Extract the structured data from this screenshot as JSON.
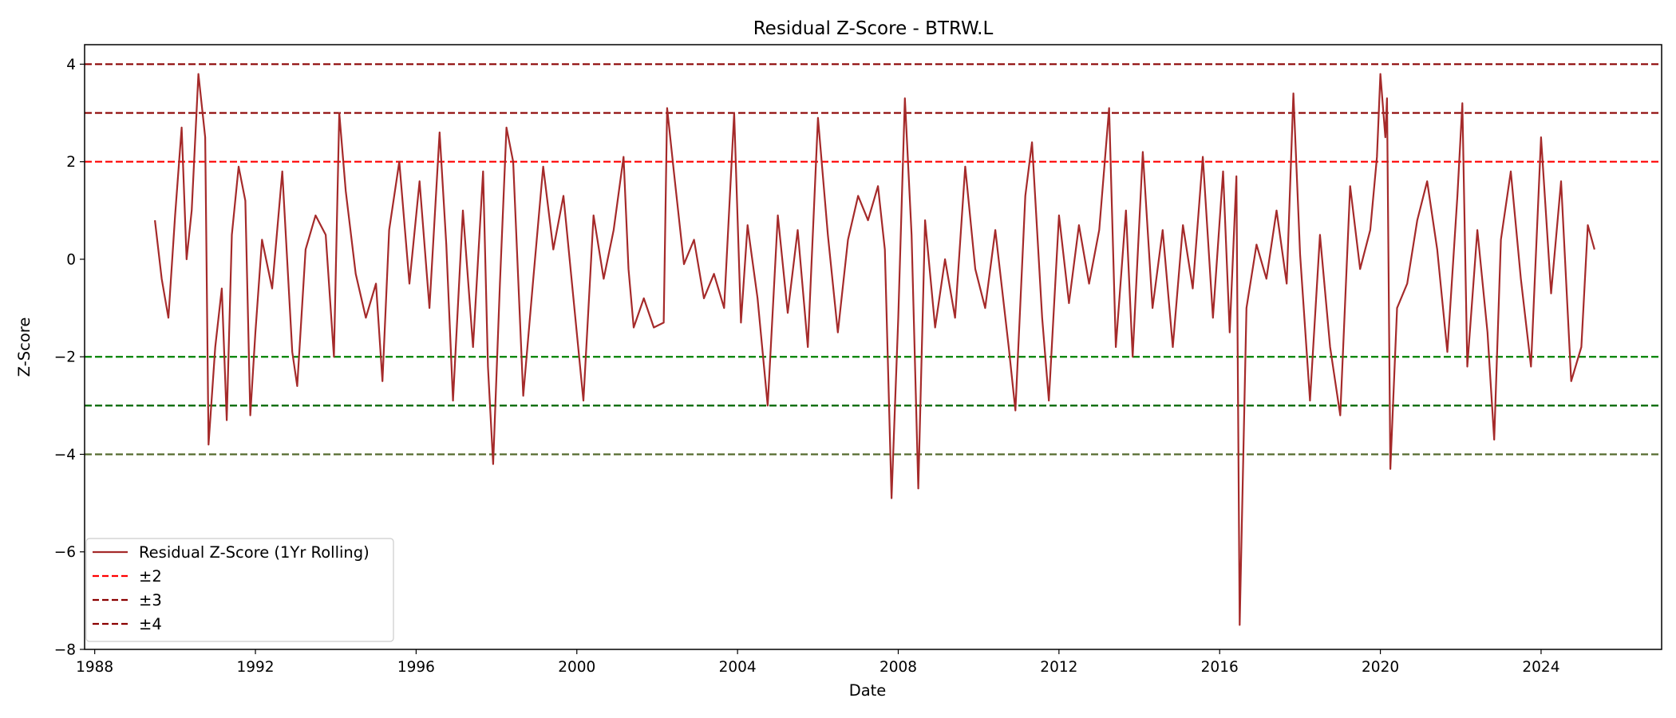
{
  "chart_data": {
    "type": "line",
    "title": "Residual Z-Score - BTRW.L",
    "xlabel": "Date",
    "ylabel": "Z-Score",
    "xlim": [
      "1987-10-01",
      "2027-01-01"
    ],
    "ylim": [
      -8.0,
      4.4
    ],
    "x_ticks": [
      "1988",
      "1992",
      "1996",
      "2000",
      "2004",
      "2008",
      "2012",
      "2016",
      "2020",
      "2024"
    ],
    "y_ticks": [
      -8,
      -6,
      -4,
      -2,
      0,
      2,
      4
    ],
    "y_tick_labels": [
      "−8",
      "−6",
      "−4",
      "−2",
      "0",
      "2",
      "4"
    ],
    "grid": false,
    "legend_position": "lower-left",
    "series": [
      {
        "name": "Residual Z-Score (1Yr Rolling)",
        "color": "#a52a2a",
        "style": "solid",
        "points": [
          [
            "1989-07-01",
            0.8
          ],
          [
            "1989-09-01",
            -0.4
          ],
          [
            "1989-11-01",
            -1.2
          ],
          [
            "1990-01-01",
            0.9
          ],
          [
            "1990-03-01",
            2.7
          ],
          [
            "1990-04-15",
            0.0
          ],
          [
            "1990-06-01",
            1.0
          ],
          [
            "1990-08-01",
            3.8
          ],
          [
            "1990-10-01",
            2.5
          ],
          [
            "1990-11-01",
            -3.8
          ],
          [
            "1991-01-01",
            -1.8
          ],
          [
            "1991-03-01",
            -0.6
          ],
          [
            "1991-04-15",
            -3.3
          ],
          [
            "1991-06-01",
            0.5
          ],
          [
            "1991-08-01",
            1.9
          ],
          [
            "1991-10-01",
            1.2
          ],
          [
            "1991-11-15",
            -3.2
          ],
          [
            "1992-01-01",
            -1.5
          ],
          [
            "1992-03-01",
            0.4
          ],
          [
            "1992-06-01",
            -0.6
          ],
          [
            "1992-09-01",
            1.8
          ],
          [
            "1992-12-01",
            -1.9
          ],
          [
            "1993-01-15",
            -2.6
          ],
          [
            "1993-04-01",
            0.2
          ],
          [
            "1993-07-01",
            0.9
          ],
          [
            "1993-10-01",
            0.5
          ],
          [
            "1993-12-15",
            -2.0
          ],
          [
            "1994-02-01",
            3.0
          ],
          [
            "1994-04-01",
            1.4
          ],
          [
            "1994-07-01",
            -0.3
          ],
          [
            "1994-10-01",
            -1.2
          ],
          [
            "1995-01-01",
            -0.5
          ],
          [
            "1995-03-01",
            -2.5
          ],
          [
            "1995-05-01",
            0.6
          ],
          [
            "1995-08-01",
            2.0
          ],
          [
            "1995-11-01",
            -0.5
          ],
          [
            "1996-02-01",
            1.6
          ],
          [
            "1996-05-01",
            -1.0
          ],
          [
            "1996-08-01",
            2.6
          ],
          [
            "1996-10-01",
            0.3
          ],
          [
            "1996-12-01",
            -2.9
          ],
          [
            "1997-03-01",
            1.0
          ],
          [
            "1997-06-01",
            -1.8
          ],
          [
            "1997-09-01",
            1.8
          ],
          [
            "1997-10-15",
            -2.2
          ],
          [
            "1997-12-01",
            -4.2
          ],
          [
            "1998-02-01",
            -0.5
          ],
          [
            "1998-04-01",
            2.7
          ],
          [
            "1998-06-01",
            2.0
          ],
          [
            "1998-09-01",
            -2.8
          ],
          [
            "1998-12-01",
            -0.4
          ],
          [
            "1999-03-01",
            1.9
          ],
          [
            "1999-06-01",
            0.2
          ],
          [
            "1999-09-01",
            1.3
          ],
          [
            "1999-12-01",
            -0.8
          ],
          [
            "2000-03-01",
            -2.9
          ],
          [
            "2000-06-01",
            0.9
          ],
          [
            "2000-09-01",
            -0.4
          ],
          [
            "2000-12-01",
            0.6
          ],
          [
            "2001-03-01",
            2.1
          ],
          [
            "2001-04-15",
            -0.2
          ],
          [
            "2001-06-01",
            -1.4
          ],
          [
            "2001-09-01",
            -0.8
          ],
          [
            "2001-12-01",
            -1.4
          ],
          [
            "2002-03-01",
            -1.3
          ],
          [
            "2002-04-01",
            3.1
          ],
          [
            "2002-06-01",
            1.8
          ],
          [
            "2002-09-01",
            -0.1
          ],
          [
            "2002-12-01",
            0.4
          ],
          [
            "2003-03-01",
            -0.8
          ],
          [
            "2003-06-01",
            -0.3
          ],
          [
            "2003-09-01",
            -1.0
          ],
          [
            "2003-12-01",
            3.0
          ],
          [
            "2004-02-01",
            -1.3
          ],
          [
            "2004-04-01",
            0.7
          ],
          [
            "2004-07-01",
            -0.8
          ],
          [
            "2004-10-01",
            -3.0
          ],
          [
            "2005-01-01",
            0.9
          ],
          [
            "2005-04-01",
            -1.1
          ],
          [
            "2005-07-01",
            0.6
          ],
          [
            "2005-10-01",
            -1.8
          ],
          [
            "2006-01-01",
            2.9
          ],
          [
            "2006-04-01",
            0.5
          ],
          [
            "2006-07-01",
            -1.5
          ],
          [
            "2006-10-01",
            0.4
          ],
          [
            "2007-01-01",
            1.3
          ],
          [
            "2007-04-01",
            0.8
          ],
          [
            "2007-07-01",
            1.5
          ],
          [
            "2007-09-01",
            0.2
          ],
          [
            "2007-11-01",
            -4.9
          ],
          [
            "2008-01-01",
            -1.2
          ],
          [
            "2008-03-01",
            3.3
          ],
          [
            "2008-05-01",
            0.5
          ],
          [
            "2008-07-01",
            -4.7
          ],
          [
            "2008-09-01",
            0.8
          ],
          [
            "2008-12-01",
            -1.4
          ],
          [
            "2009-03-01",
            0.0
          ],
          [
            "2009-06-01",
            -1.2
          ],
          [
            "2009-09-01",
            1.9
          ],
          [
            "2009-12-01",
            -0.2
          ],
          [
            "2010-03-01",
            -1.0
          ],
          [
            "2010-06-01",
            0.6
          ],
          [
            "2010-10-01",
            -1.8
          ],
          [
            "2010-12-01",
            -3.1
          ],
          [
            "2011-03-01",
            1.3
          ],
          [
            "2011-05-01",
            2.4
          ],
          [
            "2011-08-01",
            -1.2
          ],
          [
            "2011-10-01",
            -2.9
          ],
          [
            "2012-01-01",
            0.9
          ],
          [
            "2012-04-01",
            -0.9
          ],
          [
            "2012-07-01",
            0.7
          ],
          [
            "2012-10-01",
            -0.5
          ],
          [
            "2013-01-01",
            0.6
          ],
          [
            "2013-04-01",
            3.1
          ],
          [
            "2013-06-01",
            -1.8
          ],
          [
            "2013-09-01",
            1.0
          ],
          [
            "2013-11-01",
            -2.0
          ],
          [
            "2014-02-01",
            2.2
          ],
          [
            "2014-05-01",
            -1.0
          ],
          [
            "2014-08-01",
            0.6
          ],
          [
            "2014-11-01",
            -1.8
          ],
          [
            "2015-02-01",
            0.7
          ],
          [
            "2015-05-01",
            -0.6
          ],
          [
            "2015-08-01",
            2.1
          ],
          [
            "2015-11-01",
            -1.2
          ],
          [
            "2016-02-01",
            1.8
          ],
          [
            "2016-04-01",
            -1.5
          ],
          [
            "2016-06-01",
            1.7
          ],
          [
            "2016-07-01",
            -7.5
          ],
          [
            "2016-09-01",
            -1.0
          ],
          [
            "2016-12-01",
            0.3
          ],
          [
            "2017-03-01",
            -0.4
          ],
          [
            "2017-06-01",
            1.0
          ],
          [
            "2017-09-01",
            -0.5
          ],
          [
            "2017-11-01",
            3.4
          ],
          [
            "2018-01-01",
            0.1
          ],
          [
            "2018-04-01",
            -2.9
          ],
          [
            "2018-07-01",
            0.5
          ],
          [
            "2018-10-01",
            -1.8
          ],
          [
            "2019-01-01",
            -3.2
          ],
          [
            "2019-04-01",
            1.5
          ],
          [
            "2019-07-01",
            -0.2
          ],
          [
            "2019-10-01",
            0.6
          ],
          [
            "2019-12-01",
            2.1
          ],
          [
            "2020-01-01",
            3.8
          ],
          [
            "2020-02-15",
            2.5
          ],
          [
            "2020-03-01",
            3.3
          ],
          [
            "2020-04-01",
            -4.3
          ],
          [
            "2020-06-01",
            -1.0
          ],
          [
            "2020-09-01",
            -0.5
          ],
          [
            "2020-12-01",
            0.8
          ],
          [
            "2021-03-01",
            1.6
          ],
          [
            "2021-06-01",
            0.2
          ],
          [
            "2021-09-01",
            -1.9
          ],
          [
            "2021-12-01",
            1.3
          ],
          [
            "2022-01-15",
            3.2
          ],
          [
            "2022-03-01",
            -2.2
          ],
          [
            "2022-06-01",
            0.6
          ],
          [
            "2022-09-01",
            -1.5
          ],
          [
            "2022-11-01",
            -3.7
          ],
          [
            "2023-01-01",
            0.4
          ],
          [
            "2023-04-01",
            1.8
          ],
          [
            "2023-07-01",
            -0.4
          ],
          [
            "2023-10-01",
            -2.2
          ],
          [
            "2024-01-01",
            2.5
          ],
          [
            "2024-04-01",
            -0.7
          ],
          [
            "2024-07-01",
            1.6
          ],
          [
            "2024-10-01",
            -2.5
          ],
          [
            "2025-01-01",
            -1.8
          ],
          [
            "2025-03-01",
            0.7
          ],
          [
            "2025-05-01",
            0.2
          ]
        ]
      },
      {
        "name": "±2",
        "color": "#ff0000",
        "style": "dashed",
        "values": [
          2,
          -2
        ],
        "line_colors": [
          "#ff0000",
          "#008000"
        ]
      },
      {
        "name": "±3",
        "color": "#8b0000",
        "style": "dashed",
        "values": [
          3,
          -3
        ],
        "line_colors": [
          "#8b0000",
          "#006400"
        ]
      },
      {
        "name": "±4",
        "color": "#8b0000",
        "style": "dashed",
        "values": [
          4,
          -4
        ],
        "line_colors": [
          "#8b0000",
          "#556b2f"
        ]
      }
    ]
  }
}
